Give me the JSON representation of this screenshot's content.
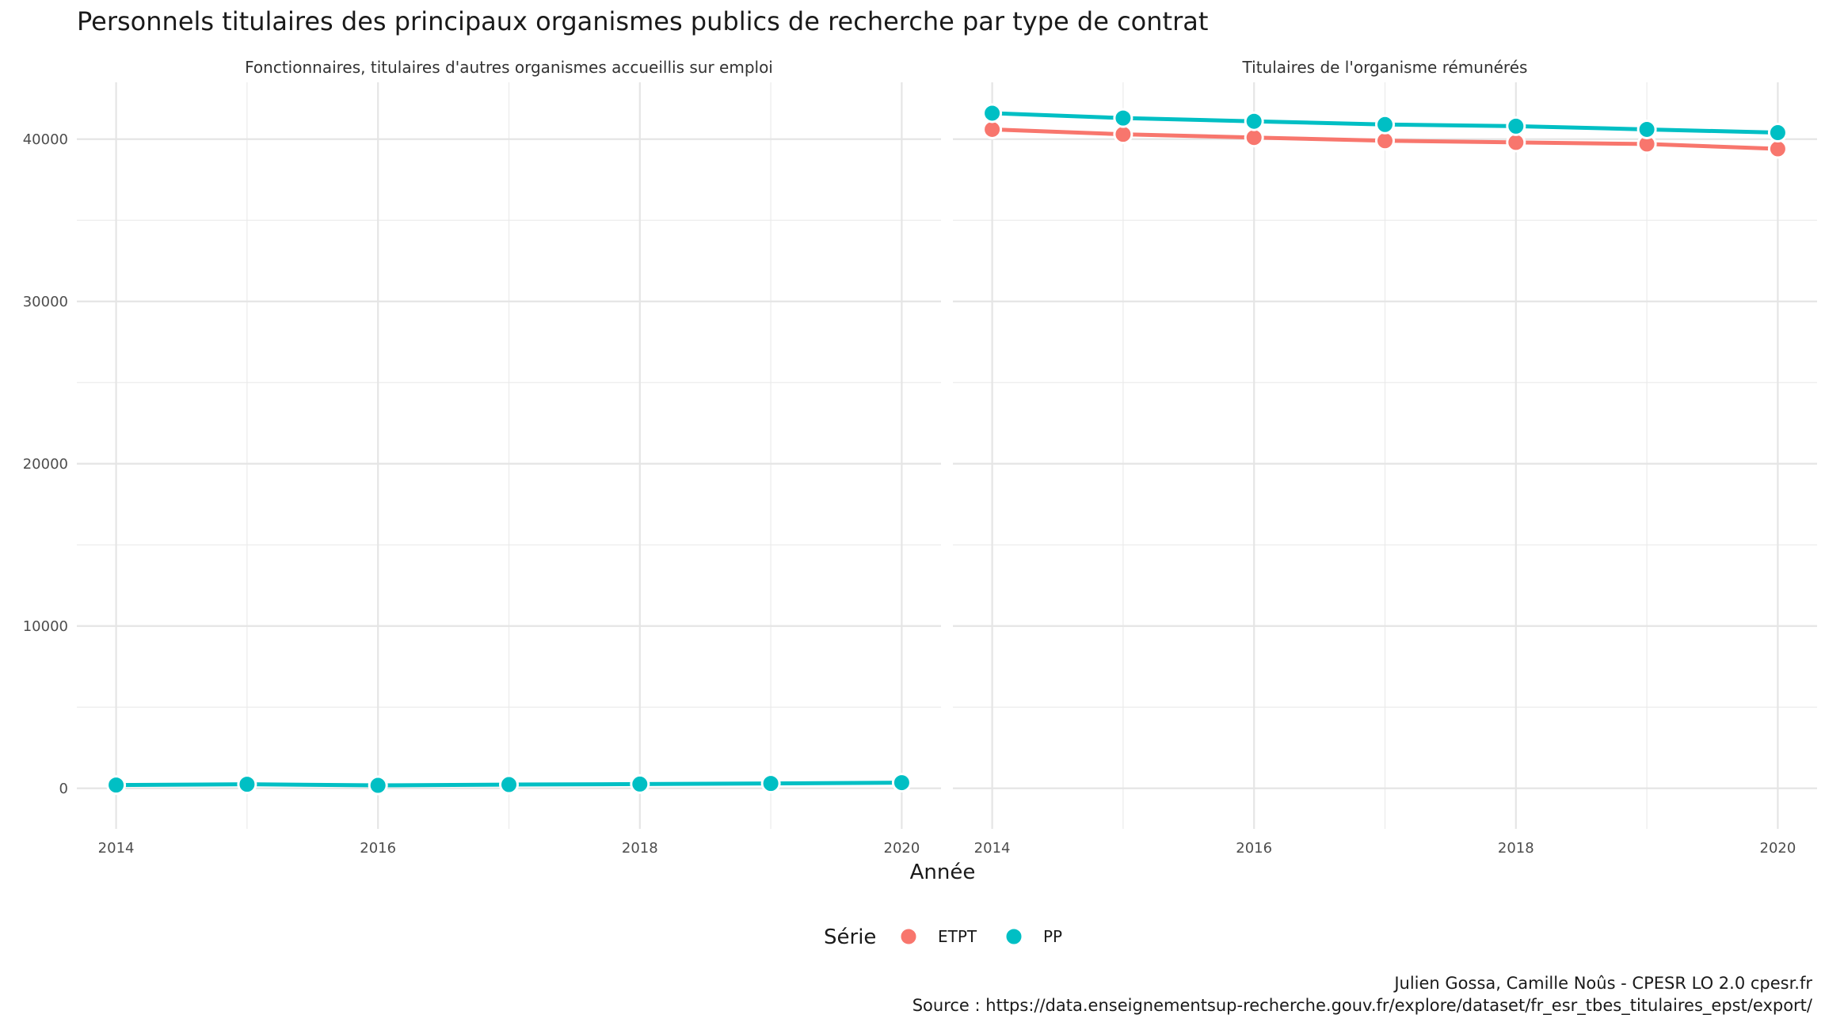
{
  "title": "Personnels titulaires des principaux organismes publics de recherche par type de contrat",
  "xlabel": "Année",
  "legend": {
    "title": "Série"
  },
  "caption": {
    "line1": "Julien Gossa, Camille Noûs - CPESR LO 2.0 cpesr.fr",
    "line2": "Source : https://data.enseignementsup-recherche.gouv.fr/explore/dataset/fr_esr_tbes_titulaires_epst/export/"
  },
  "chart_data": {
    "type": "line",
    "xlabel": "Année",
    "ylabel": "",
    "x": [
      2014,
      2015,
      2016,
      2017,
      2018,
      2019,
      2020
    ],
    "xticks": [
      2014,
      2016,
      2018,
      2020
    ],
    "yticks": [
      0,
      10000,
      20000,
      30000,
      40000
    ],
    "ylim": [
      -2500,
      43500
    ],
    "grid": true,
    "legend_position": "bottom",
    "colors": {
      "ETPT": "#F8766D",
      "PP": "#00BFC4"
    },
    "legend_entries": [
      "ETPT",
      "PP"
    ],
    "panels": [
      {
        "title": "Fonctionnaires, titulaires d'autres organismes accueillis sur emploi",
        "series": [
          {
            "name": "PP",
            "values": [
              200,
              250,
              180,
              230,
              260,
              300,
              350
            ]
          }
        ]
      },
      {
        "title": "Titulaires de l'organisme rémunérés",
        "series": [
          {
            "name": "ETPT",
            "values": [
              40600,
              40300,
              40100,
              39900,
              39800,
              39700,
              39400
            ]
          },
          {
            "name": "PP",
            "values": [
              41600,
              41300,
              41100,
              40900,
              40800,
              40600,
              40400
            ]
          }
        ]
      }
    ]
  }
}
